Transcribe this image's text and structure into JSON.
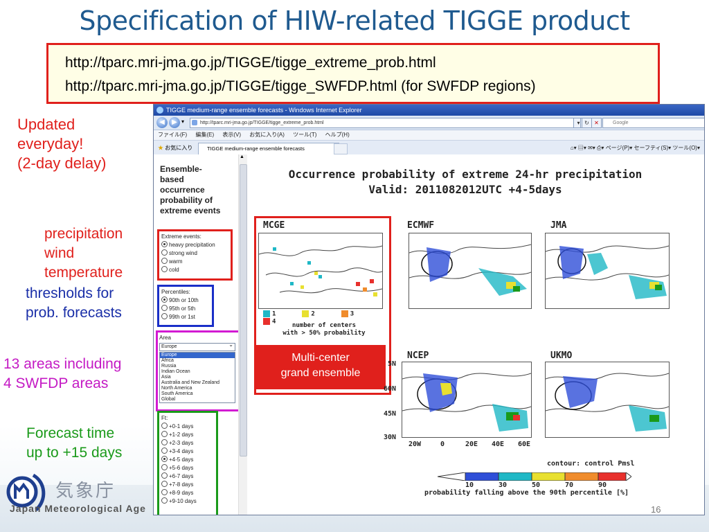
{
  "title": "Specification of HIW-related TIGGE product",
  "urls": [
    "http://tparc.mri-jma.go.jp/TIGGE/tigge_extreme_prob.html",
    "http://tparc.mri-jma.go.jp/TIGGE/tigge_SWFDP.html (for SWFDP regions)"
  ],
  "annotations": {
    "updated": [
      "Updated",
      "everyday!",
      "(2-day delay)"
    ],
    "variables": [
      "precipitation",
      "wind",
      "temperature"
    ],
    "thresholds": [
      "thresholds for",
      "prob. forecasts"
    ],
    "areas": [
      "13 areas including",
      "4 SWFDP areas"
    ],
    "forecast_time": [
      "Forecast time",
      "up to +15 days"
    ]
  },
  "browser": {
    "window_title": "TIGGE medium-range ensemble forecasts - Windows Internet Explorer",
    "address": "http://tparc.mri-jma.go.jp/TIGGE/tigge_extreme_prob.html",
    "search_placeholder": "Google",
    "menu": [
      "ファイル(F)",
      "編集(E)",
      "表示(V)",
      "お気に入り(A)",
      "ツール(T)",
      "ヘルプ(H)"
    ],
    "favorites_label": "お気に入り",
    "tab_label": "TIGGE medium-range ensemble forecasts",
    "tools": [
      "ページ(P)",
      "セーフティ(S)",
      "ツール(O)"
    ]
  },
  "sidebar": {
    "heading": [
      "Ensemble-",
      "based",
      "occurrence",
      "probability of",
      "extreme events"
    ],
    "extreme_events": {
      "label": "Extreme events:",
      "options": [
        "heavy precipitation",
        "strong wind",
        "warm",
        "cold"
      ],
      "selected": 0
    },
    "percentiles": {
      "label": "Percentiles:",
      "options": [
        "90th or 10th",
        "95th or 5th",
        "99th or 1st"
      ],
      "selected": 0
    },
    "area": {
      "label": "Area",
      "selected_value": "Europe",
      "options": [
        "Europe",
        "Africa",
        "Russia",
        "Indian Ocean",
        "Asia",
        "Australia and New Zealand",
        "North America",
        "South America",
        "Global"
      ]
    },
    "ft": {
      "label": "Ft:",
      "options": [
        "+0-1 days",
        "+1-2 days",
        "+2-3 days",
        "+3-4 days",
        "+4-5 days",
        "+5-6 days",
        "+6-7 days",
        "+7-8 days",
        "+8-9 days",
        "+9-10 days"
      ],
      "selected": 4
    }
  },
  "product": {
    "title_line1": "Occurrence probability of extreme 24-hr precipitation",
    "title_line2": "Valid: 2011082012UTC +4-5days",
    "maps": [
      "MCGE",
      "ECMWF",
      "JMA",
      "NCEP",
      "UKMO"
    ],
    "mcge_legend": [
      "1",
      "2",
      "3",
      "4"
    ],
    "mcge_legend_colors": [
      "#1fb8c6",
      "#e8e030",
      "#f08c2c",
      "#e8302c"
    ],
    "mcge_note": [
      "number of centers",
      "with > 50% probability"
    ],
    "mcge_callout": [
      "Multi-center",
      "grand ensemble"
    ],
    "lat_labels": [
      "5N",
      "60N",
      "45N",
      "30N"
    ],
    "lon_labels": [
      "20W",
      "0",
      "20E",
      "40E",
      "60E"
    ],
    "contour_note": "contour: control Pmsl",
    "colorbar_ticks": [
      "10",
      "30",
      "50",
      "70",
      "90"
    ],
    "colorbar_colors": [
      "#ffffff",
      "#2f4fd8",
      "#1fb8c6",
      "#e8e030",
      "#f08c2c",
      "#e8302c",
      "#ffffff"
    ],
    "prob_note": "probability falling above the 90th percentile [%]"
  },
  "footer": {
    "agency_kanji": "気象庁",
    "agency_en": "Japan Meteorological Age",
    "page_number": "16"
  }
}
